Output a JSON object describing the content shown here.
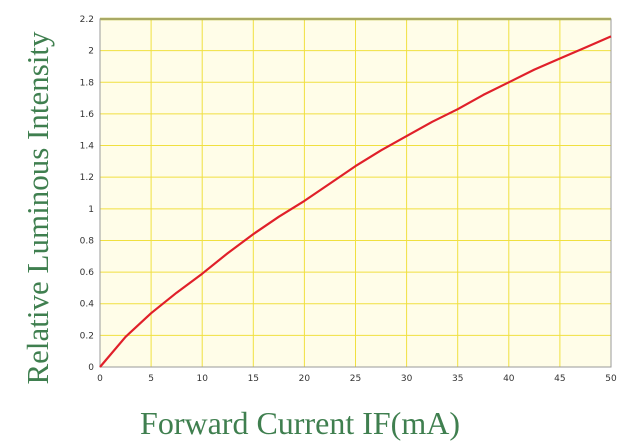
{
  "chart_data": {
    "type": "line",
    "title": "",
    "xlabel": "Forward Current IF(mA)",
    "ylabel": "Relative Luminous Intensity",
    "xlim": [
      0,
      50
    ],
    "ylim": [
      0,
      2.2
    ],
    "grid": true,
    "x_ticks": [
      "0",
      "5",
      "10",
      "15",
      "20",
      "25",
      "30",
      "35",
      "40",
      "45",
      "50"
    ],
    "y_ticks": [
      "0",
      "0.2",
      "0.4",
      "0.6",
      "0.8",
      "1",
      "1.2",
      "1.4",
      "1.6",
      "1.8",
      "2",
      "2.2"
    ],
    "series": [
      {
        "color": "#e0202a",
        "x": [
          0,
          2.5,
          5,
          7.5,
          10,
          12.5,
          15,
          17.5,
          20,
          22.5,
          25,
          27.5,
          30,
          32.5,
          35,
          37.5,
          40,
          42.5,
          45,
          47.5,
          50
        ],
        "y": [
          0,
          0.19,
          0.34,
          0.47,
          0.59,
          0.72,
          0.84,
          0.95,
          1.05,
          1.16,
          1.27,
          1.37,
          1.46,
          1.55,
          1.63,
          1.72,
          1.8,
          1.88,
          1.95,
          2.02,
          2.09
        ]
      }
    ],
    "colors": {
      "plot_bg": "#fffde8",
      "grid": "#f0e040",
      "frame": "#9a9a9a",
      "top_border": "#b8b830",
      "axis_title": "#3f7f4f"
    }
  }
}
